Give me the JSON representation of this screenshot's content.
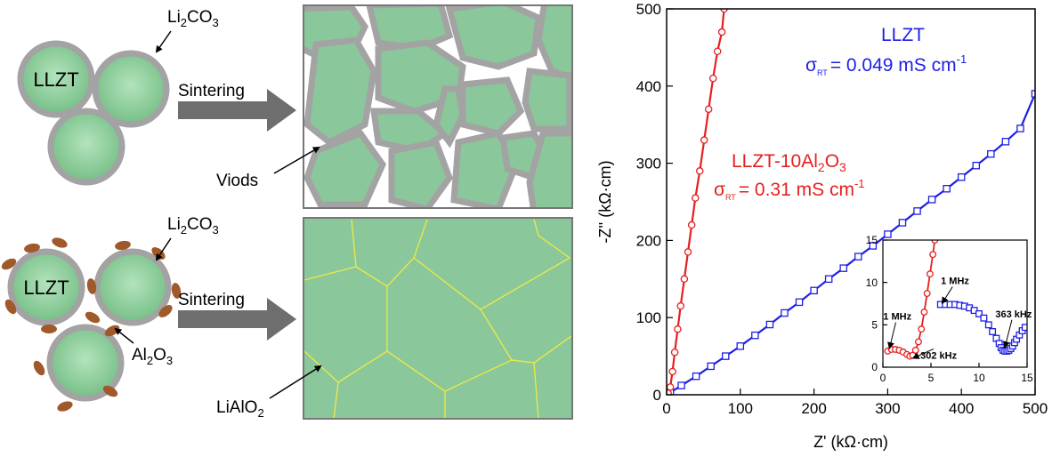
{
  "schematic": {
    "top": {
      "particle_label": "LLZT",
      "coating_label": "Li",
      "coating_sub": "2",
      "coating_rest": "CO",
      "coating_sub2": "3",
      "arrow_label": "Sintering",
      "defect_label": "Viods"
    },
    "bottom": {
      "particle_label": "LLZT",
      "coating_label": "Li",
      "coating_sub": "2",
      "coating_rest": "CO",
      "coating_sub2": "3",
      "additive_label": "Al",
      "additive_sub": "2",
      "additive_rest": "O",
      "additive_sub2": "3",
      "arrow_label": "Sintering",
      "phase_label": "LiAlO",
      "phase_sub": "2"
    },
    "colors": {
      "grain": "#8ac79b",
      "grain_light": "#a8dcb2",
      "shell": "#a3a3a3",
      "dot": "#a0592a",
      "boundary": "#e8e84a",
      "arrow": "#6e6e6e"
    }
  },
  "chart_data": {
    "type": "scatter",
    "xlabel": "Z' (kΩ·cm)",
    "ylabel": "-Z'' (kΩ·cm)",
    "xlim": [
      0,
      500
    ],
    "ylim": [
      0,
      500
    ],
    "xticks": [
      "0",
      "100",
      "200",
      "300",
      "400",
      "500"
    ],
    "yticks": [
      "0",
      "100",
      "200",
      "300",
      "400",
      "500"
    ],
    "series": [
      {
        "name": "LLZT",
        "color": "#1f1fe6",
        "marker": "square",
        "sigma_symbol": "σ",
        "sigma_sub": "RT",
        "sigma_text": "= 0.049 mS cm",
        "sigma_sup": "-1",
        "x": [
          5,
          20,
          40,
          60,
          80,
          100,
          120,
          140,
          160,
          180,
          200,
          220,
          240,
          260,
          280,
          300,
          320,
          340,
          360,
          380,
          400,
          420,
          440,
          460,
          480,
          500
        ],
        "y": [
          3,
          12,
          24,
          37,
          50,
          63,
          77,
          91,
          106,
          120,
          135,
          150,
          164,
          179,
          193,
          208,
          223,
          238,
          253,
          267,
          282,
          297,
          312,
          328,
          345,
          390
        ]
      },
      {
        "name": "LLZT-10Al",
        "name_sub": "2",
        "name_rest": "O",
        "name_sub2": "3",
        "color": "#e61f1f",
        "marker": "circle",
        "sigma_symbol": "σ",
        "sigma_sub": "RT",
        "sigma_text": "= 0.31 mS cm",
        "sigma_sup": "-1",
        "x": [
          2,
          5,
          8,
          11,
          15,
          19,
          24,
          29,
          34,
          39,
          45,
          51,
          57,
          63,
          69,
          75,
          78
        ],
        "y": [
          2,
          10,
          30,
          55,
          85,
          115,
          150,
          185,
          220,
          255,
          290,
          330,
          370,
          410,
          445,
          470,
          500
        ]
      }
    ],
    "inset": {
      "xlim": [
        0,
        15
      ],
      "ylim": [
        0,
        15
      ],
      "xticks": [
        "0",
        "5",
        "10",
        "15"
      ],
      "yticks": [
        "0",
        "5",
        "10",
        "15"
      ],
      "series": [
        {
          "name": "LLZT",
          "color": "#1f1fe6",
          "marker": "square",
          "x": [
            6.0,
            6.5,
            7.0,
            7.5,
            8.0,
            8.5,
            9.0,
            9.5,
            10.0,
            10.5,
            11.0,
            11.4,
            11.8,
            12.1,
            12.3,
            12.5,
            12.7,
            12.9,
            13.1,
            13.3,
            13.5,
            13.7,
            13.9,
            14.2,
            14.5,
            14.8
          ],
          "y": [
            7.4,
            7.4,
            7.4,
            7.4,
            7.3,
            7.2,
            7.0,
            6.7,
            6.3,
            5.8,
            5.0,
            4.2,
            3.4,
            2.8,
            2.3,
            2.0,
            1.9,
            1.9,
            2.0,
            2.2,
            2.5,
            2.9,
            3.3,
            3.8,
            4.3,
            4.7
          ]
        },
        {
          "name": "LLZT-10Al2O3",
          "color": "#e61f1f",
          "marker": "circle",
          "x": [
            0.5,
            0.9,
            1.3,
            1.7,
            2.1,
            2.5,
            2.8,
            3.1,
            3.4,
            3.7,
            4.0,
            4.3,
            4.6,
            4.9,
            5.2,
            5.4
          ],
          "y": [
            1.9,
            2.1,
            2.1,
            2.0,
            1.8,
            1.5,
            1.3,
            1.4,
            2.0,
            3.0,
            4.5,
            6.5,
            8.7,
            11.0,
            13.3,
            15.0
          ]
        }
      ],
      "annotations": [
        {
          "text": "1 MHz",
          "x": 1.5,
          "y": 5.6,
          "ax": 0.7,
          "ay": 2.3
        },
        {
          "text": "302 kHz",
          "x": 5.8,
          "y": 1.0,
          "ax": 3.2,
          "ay": 1.1
        },
        {
          "text": "1 MHz",
          "x": 7.5,
          "y": 9.8,
          "ax": 6.2,
          "ay": 7.6
        },
        {
          "text": "363 kHz",
          "x": 13.6,
          "y": 5.9,
          "ax": 12.7,
          "ay": 2.4
        }
      ]
    }
  }
}
